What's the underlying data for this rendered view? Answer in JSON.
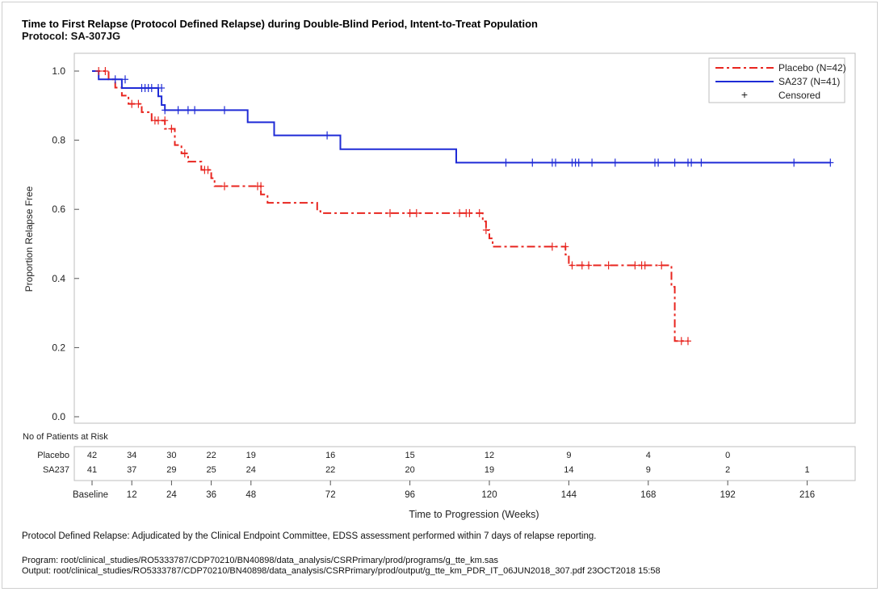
{
  "title": "Time to First Relapse (Protocol Defined Relapse) during Double-Blind Period, Intent-to-Treat Population",
  "subtitle": "Protocol: SA-307JG",
  "footnote": "Protocol Defined Relapse: Adjudicated by the Clinical Endpoint Committee, EDSS assessment performed within 7 days of relapse reporting.",
  "program_line": "Program: root/clinical_studies/RO5333787/CDP70210/BN40898/data_analysis/CSRPrimary/prod/programs/g_tte_km.sas",
  "output_line": "Output: root/clinical_studies/RO5333787/CDP70210/BN40898/data_analysis/CSRPrimary/prod/output/g_tte_km_PDR_IT_06JUN2018_307.pdf 23OCT2018 15:58",
  "colors": {
    "placebo": "#e8251f",
    "sa237": "#1f2bd6"
  },
  "chart_data": {
    "type": "line",
    "subtype": "kaplan-meier",
    "xlabel": "Time to Progression (Weeks)",
    "ylabel": "Proportion Relapse Free",
    "xlim": [
      -2,
      230
    ],
    "ylim": [
      0,
      1.03
    ],
    "x_ticks": [
      0,
      12,
      24,
      36,
      48,
      72,
      96,
      120,
      144,
      168,
      192,
      216
    ],
    "x_tick_labels": [
      "Baseline",
      "12",
      "24",
      "36",
      "48",
      "72",
      "96",
      "120",
      "144",
      "168",
      "192",
      "216"
    ],
    "y_ticks": [
      0.0,
      0.2,
      0.4,
      0.6,
      0.8,
      1.0
    ],
    "y_tick_labels": [
      "0.0",
      "0.2",
      "0.4",
      "0.6",
      "0.8",
      "1.0"
    ],
    "grid": false,
    "legend_position": "top-right",
    "legend": [
      {
        "label": "Placebo (N=42)",
        "style": "dash-dot",
        "key": "placebo"
      },
      {
        "label": "SA237 (N=41)",
        "style": "solid",
        "key": "sa237"
      },
      {
        "label": "Censored",
        "style": "plus",
        "key": "censor"
      }
    ],
    "series": [
      {
        "name": "Placebo (N=42)",
        "key": "placebo",
        "steps": [
          [
            0,
            1.0
          ],
          [
            5,
            0.976
          ],
          [
            7,
            0.952
          ],
          [
            9,
            0.929
          ],
          [
            11,
            0.905
          ],
          [
            15,
            0.881
          ],
          [
            18,
            0.857
          ],
          [
            22,
            0.833
          ],
          [
            25,
            0.786
          ],
          [
            27,
            0.762
          ],
          [
            29,
            0.738
          ],
          [
            33,
            0.714
          ],
          [
            36,
            0.69
          ],
          [
            37,
            0.667
          ],
          [
            51,
            0.643
          ],
          [
            53,
            0.619
          ],
          [
            68,
            0.595
          ],
          [
            69,
            0.589
          ],
          [
            118,
            0.565
          ],
          [
            119,
            0.54
          ],
          [
            120,
            0.516
          ],
          [
            121,
            0.492
          ],
          [
            143,
            0.469
          ],
          [
            144,
            0.438
          ],
          [
            175,
            0.376
          ],
          [
            176,
            0.219
          ],
          [
            180,
            0.219
          ]
        ],
        "censored": [
          [
            2,
            1.0
          ],
          [
            4,
            1.0
          ],
          [
            12,
            0.905
          ],
          [
            14,
            0.905
          ],
          [
            19,
            0.857
          ],
          [
            20,
            0.857
          ],
          [
            22,
            0.857
          ],
          [
            24,
            0.833
          ],
          [
            28,
            0.762
          ],
          [
            34,
            0.714
          ],
          [
            35,
            0.714
          ],
          [
            40,
            0.667
          ],
          [
            50,
            0.667
          ],
          [
            51,
            0.667
          ],
          [
            90,
            0.589
          ],
          [
            96,
            0.589
          ],
          [
            98,
            0.589
          ],
          [
            111,
            0.589
          ],
          [
            113,
            0.589
          ],
          [
            114,
            0.589
          ],
          [
            117,
            0.589
          ],
          [
            119,
            0.54
          ],
          [
            139,
            0.492
          ],
          [
            143,
            0.492
          ],
          [
            145,
            0.438
          ],
          [
            148,
            0.438
          ],
          [
            150,
            0.438
          ],
          [
            156,
            0.438
          ],
          [
            164,
            0.438
          ],
          [
            166,
            0.438
          ],
          [
            167,
            0.438
          ],
          [
            172,
            0.438
          ],
          [
            178,
            0.219
          ],
          [
            180,
            0.219
          ]
        ]
      },
      {
        "name": "SA237 (N=41)",
        "key": "sa237",
        "steps": [
          [
            0,
            1.0
          ],
          [
            2,
            0.976
          ],
          [
            9,
            0.951
          ],
          [
            20,
            0.927
          ],
          [
            21,
            0.902
          ],
          [
            22,
            0.887
          ],
          [
            47,
            0.852
          ],
          [
            55,
            0.814
          ],
          [
            75,
            0.774
          ],
          [
            110,
            0.735
          ],
          [
            223,
            0.735
          ]
        ],
        "censored": [
          [
            7,
            0.976
          ],
          [
            10,
            0.976
          ],
          [
            15,
            0.951
          ],
          [
            16,
            0.951
          ],
          [
            17,
            0.951
          ],
          [
            18,
            0.951
          ],
          [
            20,
            0.951
          ],
          [
            21,
            0.951
          ],
          [
            22,
            0.887
          ],
          [
            26,
            0.887
          ],
          [
            29,
            0.887
          ],
          [
            31,
            0.887
          ],
          [
            40,
            0.887
          ],
          [
            71,
            0.814
          ],
          [
            125,
            0.735
          ],
          [
            133,
            0.735
          ],
          [
            139,
            0.735
          ],
          [
            140,
            0.735
          ],
          [
            145,
            0.735
          ],
          [
            146,
            0.735
          ],
          [
            147,
            0.735
          ],
          [
            151,
            0.735
          ],
          [
            158,
            0.735
          ],
          [
            170,
            0.735
          ],
          [
            171,
            0.735
          ],
          [
            176,
            0.735
          ],
          [
            180,
            0.735
          ],
          [
            181,
            0.735
          ],
          [
            184,
            0.735
          ],
          [
            212,
            0.735
          ],
          [
            223,
            0.735
          ]
        ]
      }
    ],
    "risk_table": {
      "title": "No of Patients at Risk",
      "times": [
        0,
        12,
        24,
        36,
        48,
        72,
        96,
        120,
        144,
        168,
        192,
        216
      ],
      "rows": [
        {
          "label": "Placebo",
          "values": [
            "42",
            "34",
            "30",
            "22",
            "19",
            "16",
            "15",
            "12",
            "9",
            "4",
            "0",
            ""
          ]
        },
        {
          "label": "SA237",
          "values": [
            "41",
            "37",
            "29",
            "25",
            "24",
            "22",
            "20",
            "19",
            "14",
            "9",
            "2",
            "1"
          ]
        }
      ]
    }
  }
}
